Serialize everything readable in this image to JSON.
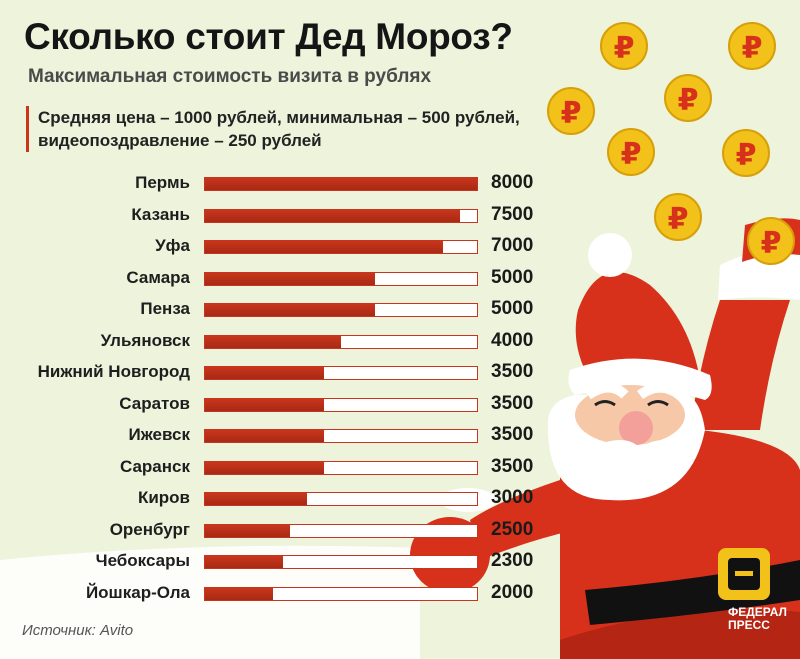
{
  "header": {
    "title": "Сколько стоит Дед Мороз?",
    "subtitle": "Максимальная стоимость визита в рублях",
    "note_line1": "Средняя цена – 1000 рублей, минимальная – 500 рублей,",
    "note_line2": "видеопоздравление – 250 рублей"
  },
  "chart_data": {
    "type": "bar",
    "orientation": "horizontal",
    "title": "Сколько стоит Дед Мороз?",
    "categories": [
      "Пермь",
      "Казань",
      "Уфа",
      "Самара",
      "Пенза",
      "Ульяновск",
      "Нижний Новгород",
      "Саратов",
      "Ижевск",
      "Саранск",
      "Киров",
      "Оренбург",
      "Чебоксары",
      "Йошкар-Ола"
    ],
    "values": [
      8000,
      7500,
      7000,
      5000,
      5000,
      4000,
      3500,
      3500,
      3500,
      3500,
      3000,
      2500,
      2300,
      2000
    ],
    "value_labels": [
      "8000",
      "7500",
      "7000",
      "5000",
      "5000",
      "4000",
      "3500",
      "3500",
      "3500",
      "3500",
      "3000",
      "2500",
      "2300",
      "2000"
    ],
    "xlim": [
      0,
      8000
    ],
    "grid": false,
    "bar_color": "#c8361c",
    "track_color": "#ffffff"
  },
  "footer": {
    "source": "Источник: Avito",
    "brand_line1": "ФЕДЕРАЛ",
    "brand_line2": "ПРЕСС"
  },
  "decor": {
    "coin_glyph": "₽",
    "coin_color": "#f2c21a",
    "santa_red": "#d7301b",
    "icons": [
      "ruble-coin-icon",
      "santa-illustration"
    ]
  }
}
